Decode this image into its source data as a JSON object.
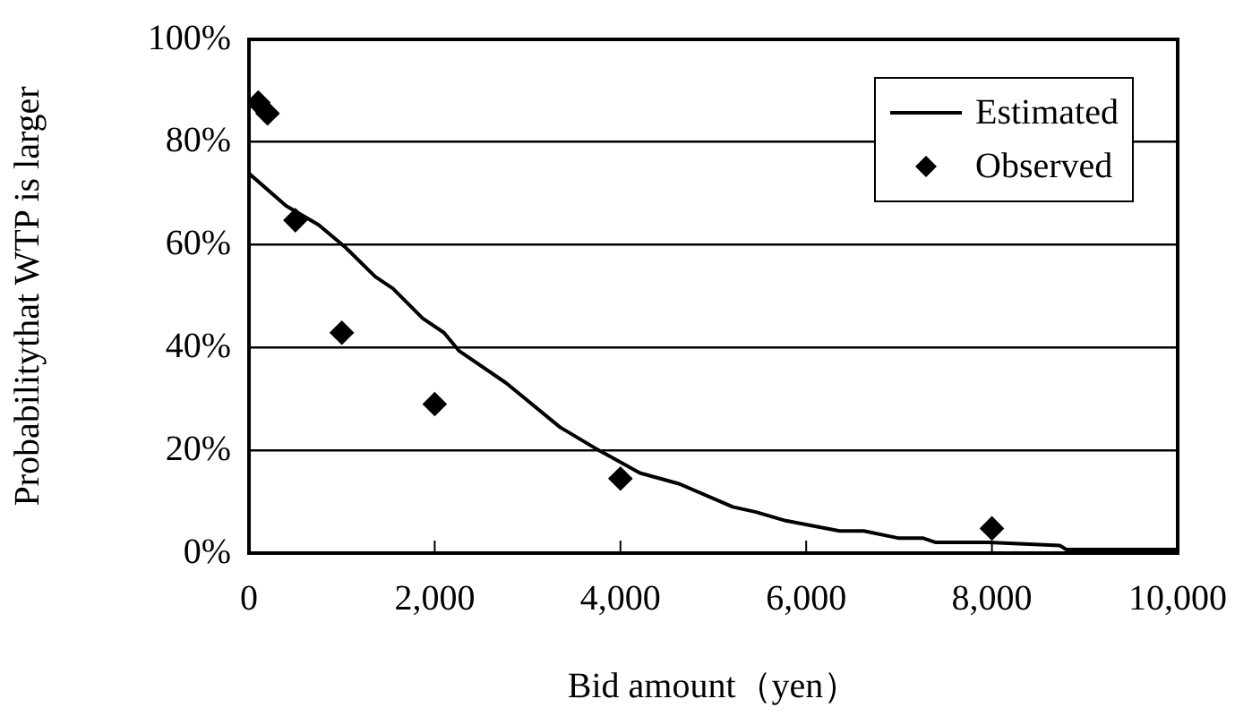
{
  "chart_data": {
    "type": "line",
    "xlabel": "Bid amount（yen）",
    "ylabel": "Probabilitythat WTP is larger",
    "series": [
      {
        "name": "Estimated",
        "type": "line",
        "color": "#000000",
        "marker": "none",
        "line_style": "solid",
        "x": [
          0,
          400,
          750,
          1040,
          1360,
          1550,
          1870,
          2100,
          2260,
          2770,
          3350,
          3730,
          4210,
          4630,
          5210,
          5460,
          5780,
          6360,
          6620,
          7000,
          7260,
          7390,
          7960,
          8730,
          8800,
          10000
        ],
        "values": [
          73.9,
          67.6,
          63.9,
          59.5,
          53.8,
          51.5,
          45.7,
          42.9,
          39.4,
          33.1,
          24.5,
          20.4,
          15.6,
          13.5,
          9.0,
          8.0,
          6.3,
          4.3,
          4.3,
          2.9,
          2.9,
          2.1,
          2.1,
          1.5,
          0.7,
          0.7
        ]
      },
      {
        "name": "Observed",
        "type": "scatter",
        "color": "#000000",
        "marker": "diamond",
        "x": [
          100,
          200,
          500,
          1000,
          2000,
          4000,
          8000
        ],
        "values": [
          87.7,
          85.6,
          64.8,
          42.9,
          29.0,
          14.5,
          4.8
        ]
      }
    ],
    "xlim": [
      0,
      10000
    ],
    "xticks": [
      0,
      {
        "value": 2000,
        "label": "2,000"
      },
      {
        "value": 4000,
        "label": "4,000"
      },
      {
        "value": 6000,
        "label": "6,000"
      },
      {
        "value": 8000,
        "label": "8,000"
      },
      {
        "value": 10000,
        "label": "10,000"
      }
    ],
    "ylim": [
      0,
      100
    ],
    "yticks": [
      {
        "value": 0,
        "label": "0%"
      },
      {
        "value": 20,
        "label": "20%"
      },
      {
        "value": 40,
        "label": "40%"
      },
      {
        "value": 60,
        "label": "60%"
      },
      {
        "value": 80,
        "label": "80%"
      },
      {
        "value": 100,
        "label": "100%"
      }
    ],
    "grid": "y",
    "legend": "top right"
  }
}
